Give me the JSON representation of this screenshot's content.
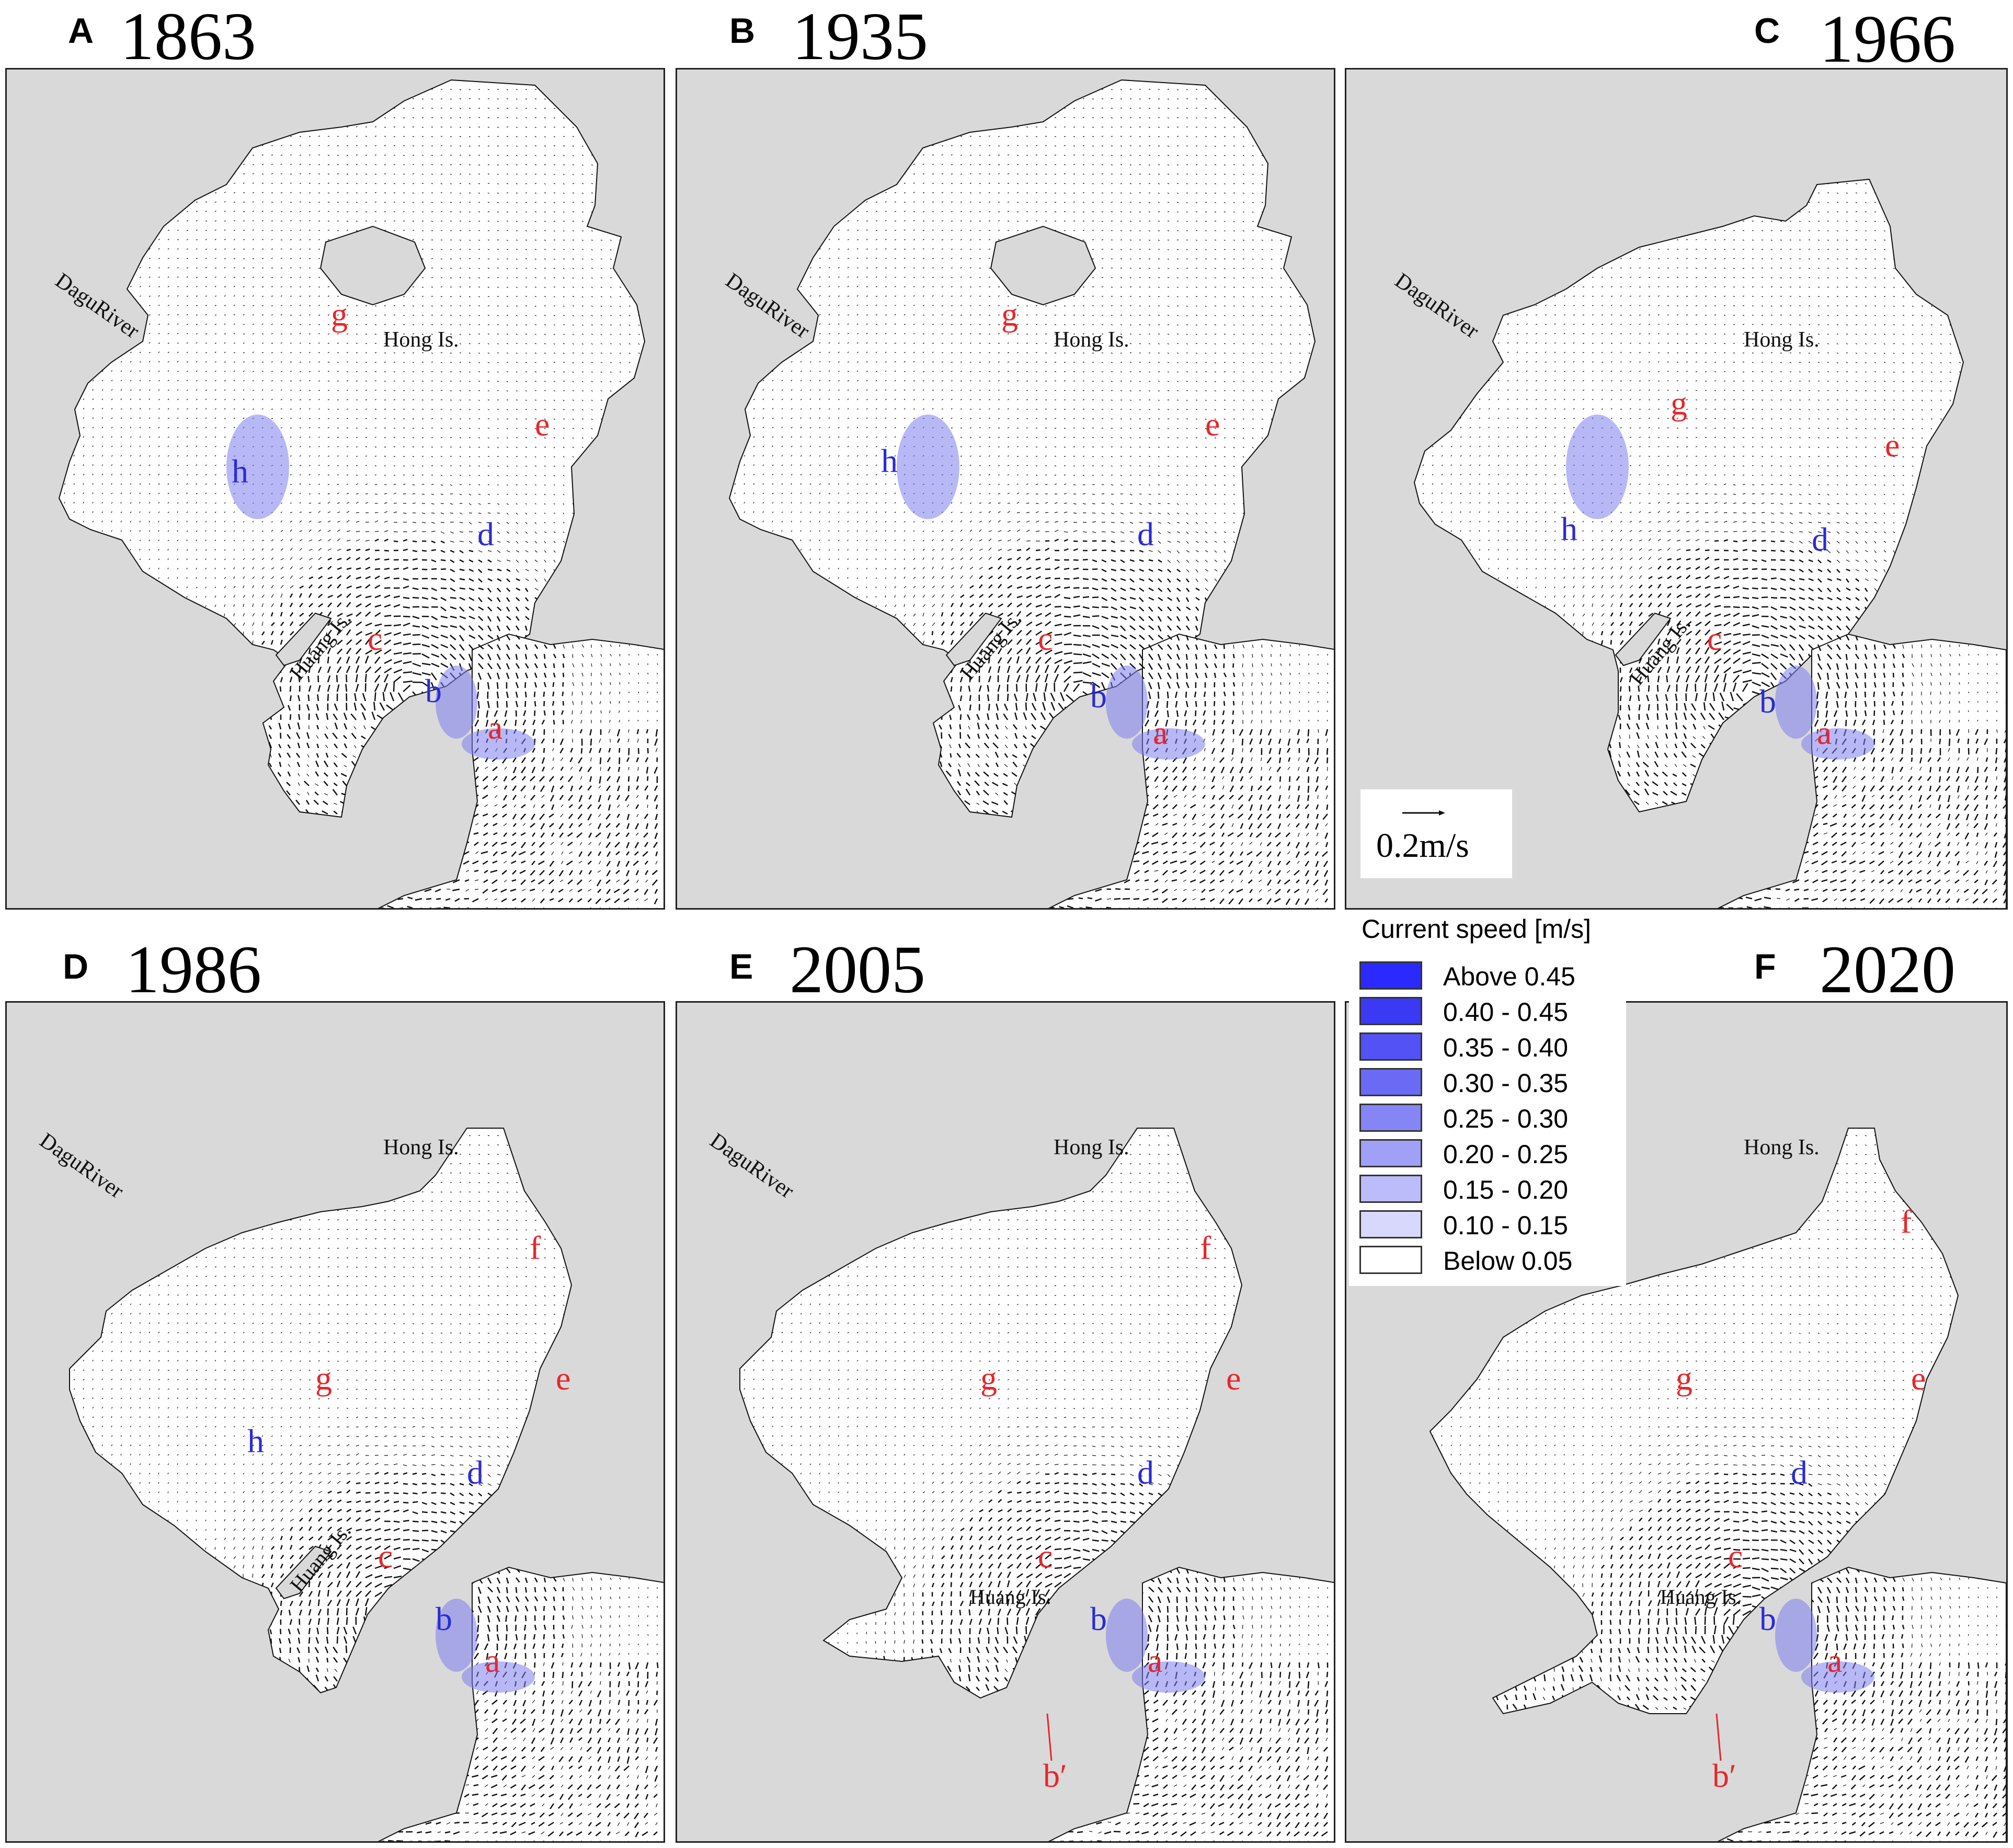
{
  "panels": [
    {
      "letter": "A",
      "year": "1863",
      "variant": 0,
      "labels": {
        "g": "g",
        "h": "h",
        "e": "e",
        "d": "d",
        "c": "c",
        "b": "b",
        "a": "a"
      },
      "places": {
        "river": "DaguRiver",
        "hong": "Hong Is.",
        "huang": "Huang Is."
      }
    },
    {
      "letter": "B",
      "year": "1935",
      "variant": 1,
      "labels": {
        "g": "g",
        "h": "h",
        "e": "e",
        "d": "d",
        "c": "c",
        "b": "b",
        "a": "a"
      },
      "places": {
        "river": "DaguRiver",
        "hong": "Hong Is.",
        "huang": "Huang Is."
      }
    },
    {
      "letter": "C",
      "year": "1966",
      "variant": 2,
      "labels": {
        "g": "g",
        "h": "h",
        "e": "e",
        "d": "d",
        "c": "c",
        "b": "b",
        "a": "a"
      },
      "places": {
        "river": "DaguRiver",
        "hong": "Hong Is.",
        "huang": "Huang Is."
      }
    },
    {
      "letter": "D",
      "year": "1986",
      "variant": 3,
      "labels": {
        "f": "f",
        "g": "g",
        "h": "h",
        "e": "e",
        "d": "d",
        "c": "c",
        "b": "b",
        "a": "a"
      },
      "places": {
        "river": "DaguRiver",
        "hong": "Hong Is.",
        "huang": "Huang Is."
      }
    },
    {
      "letter": "E",
      "year": "2005",
      "variant": 4,
      "labels": {
        "f": "f",
        "g": "g",
        "e": "e",
        "d": "d",
        "c": "c",
        "b": "b",
        "a": "a",
        "bp": "b′"
      },
      "places": {
        "river": "DaguRiver",
        "hong": "Hong Is.",
        "huang": "Huang Is."
      }
    },
    {
      "letter": "F",
      "year": "2020",
      "variant": 5,
      "labels": {
        "f": "f",
        "g": "g",
        "e": "e",
        "d": "d",
        "c": "c",
        "b": "b",
        "a": "a",
        "bp": "b′"
      },
      "places": {
        "river": "DaguRiver",
        "hong": "Hong Is.",
        "huang": "Huang Is."
      }
    }
  ],
  "scale_bar": {
    "label": "0.2m/s"
  },
  "legend": {
    "title": "Current speed [m/s]",
    "items": [
      {
        "label": "Above 0.45",
        "color": "#2a2aff"
      },
      {
        "label": "0.40 - 0.45",
        "color": "#3a3af5"
      },
      {
        "label": "0.35 - 0.40",
        "color": "#5252f5"
      },
      {
        "label": "0.30 - 0.35",
        "color": "#6a6af5"
      },
      {
        "label": "0.25 - 0.30",
        "color": "#8585f5"
      },
      {
        "label": "0.20 - 0.25",
        "color": "#a0a0f7"
      },
      {
        "label": "0.15 - 0.20",
        "color": "#bcbcfa"
      },
      {
        "label": "0.10 - 0.15",
        "color": "#d8d8fc"
      },
      {
        "label": "Below 0.05",
        "color": "#ffffff"
      }
    ]
  },
  "colors": {
    "land": "#d9d9d9",
    "water": "#ffffff",
    "label_red": "#e8262a",
    "label_blue": "#2b2bd6",
    "vector": "#111111",
    "fast": "#7d7df0"
  }
}
